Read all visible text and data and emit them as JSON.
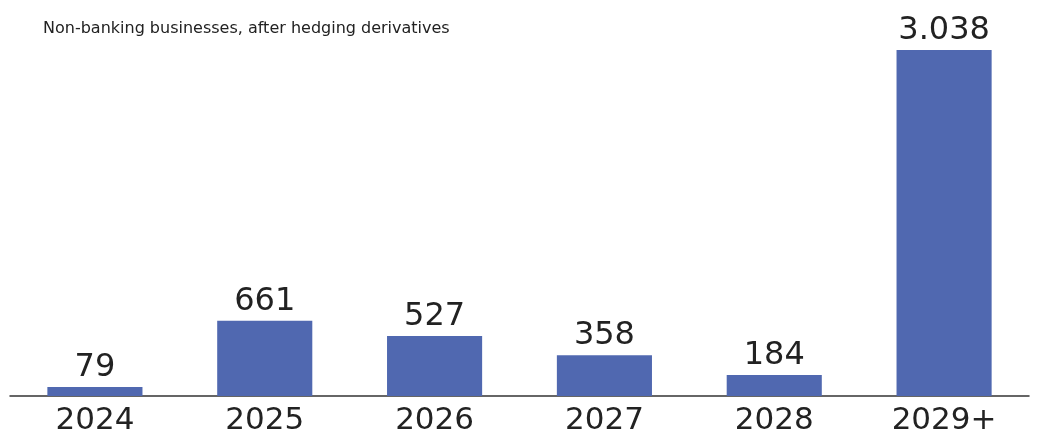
{
  "chart_data": {
    "type": "bar",
    "title": "Non-banking businesses, after hedging derivatives",
    "categories": [
      "2024",
      "2025",
      "2026",
      "2027",
      "2028",
      "2029+"
    ],
    "values": [
      79,
      661,
      527,
      358,
      184,
      3038
    ],
    "value_labels": [
      "79",
      "661",
      "527",
      "358",
      "184",
      "3.038"
    ],
    "color": "#5068b0"
  }
}
